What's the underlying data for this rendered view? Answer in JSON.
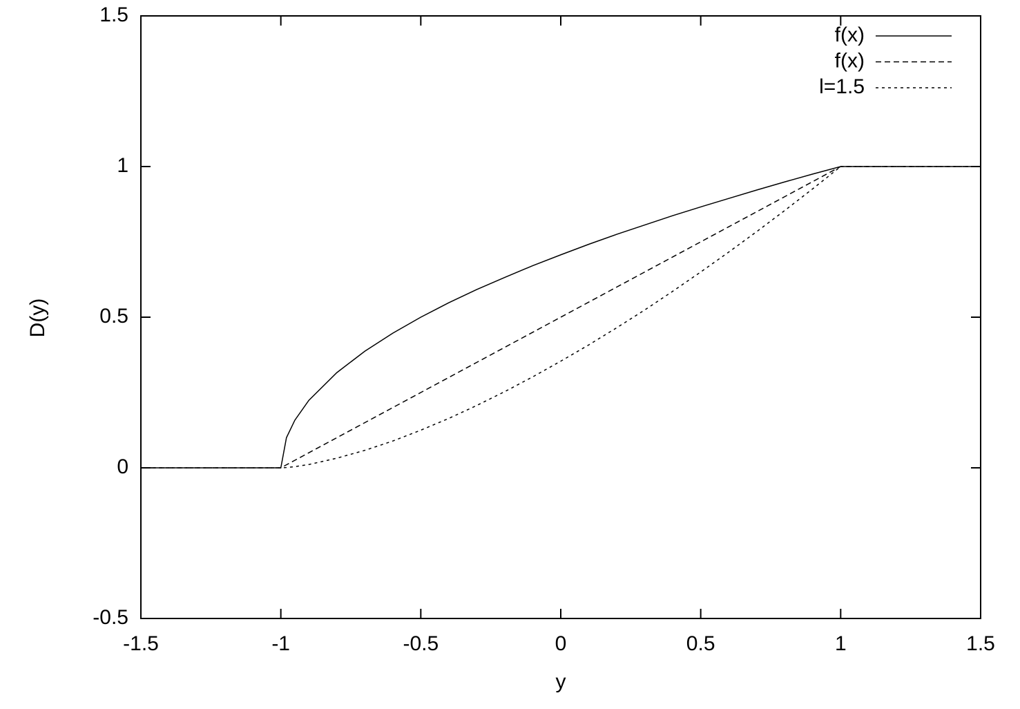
{
  "chart_data": {
    "type": "line",
    "x_label": "y",
    "y_label": "D(y)",
    "x": [
      -1.5,
      -1.4,
      -1.3,
      -1.2,
      -1.1,
      -1.0,
      -0.98,
      -0.95,
      -0.9,
      -0.8,
      -0.7,
      -0.6,
      -0.5,
      -0.4,
      -0.3,
      -0.2,
      -0.1,
      0,
      0.1,
      0.2,
      0.3,
      0.4,
      0.5,
      0.6,
      0.7,
      0.8,
      0.9,
      1.0,
      1.1,
      1.2,
      1.3,
      1.4,
      1.5
    ],
    "series": [
      {
        "name": "f(x)",
        "color": "#000000",
        "line_style": "solid",
        "values": [
          0,
          0,
          0,
          0,
          0,
          0,
          0.1,
          0.158,
          0.224,
          0.316,
          0.387,
          0.447,
          0.5,
          0.548,
          0.592,
          0.632,
          0.671,
          0.707,
          0.742,
          0.775,
          0.806,
          0.837,
          0.866,
          0.894,
          0.922,
          0.949,
          0.975,
          1,
          1,
          1,
          1,
          1,
          1
        ]
      },
      {
        "name": "f(x)",
        "color": "#000000",
        "line_style": "dashed",
        "values": [
          0,
          0,
          0,
          0,
          0,
          0,
          0.01,
          0.025,
          0.05,
          0.1,
          0.15,
          0.2,
          0.25,
          0.3,
          0.35,
          0.4,
          0.45,
          0.5,
          0.55,
          0.6,
          0.65,
          0.7,
          0.75,
          0.8,
          0.85,
          0.9,
          0.95,
          1,
          1,
          1,
          1,
          1,
          1
        ]
      },
      {
        "name": "l=1.5",
        "color": "#000000",
        "line_style": "dotted",
        "values": [
          0,
          0,
          0,
          0,
          0,
          0,
          0.001,
          0.004,
          0.011,
          0.032,
          0.058,
          0.089,
          0.125,
          0.164,
          0.207,
          0.253,
          0.302,
          0.354,
          0.408,
          0.465,
          0.524,
          0.586,
          0.65,
          0.716,
          0.784,
          0.854,
          0.926,
          1,
          1,
          1,
          1,
          1,
          1
        ]
      }
    ],
    "xlim": [
      -1.5,
      1.5
    ],
    "xticks": [
      -1.5,
      -1,
      -0.5,
      0,
      0.5,
      1,
      1.5
    ],
    "ylim": [
      -0.5,
      1.5
    ],
    "yticks": [
      -0.5,
      0,
      0.5,
      1,
      1.5
    ],
    "grid": false,
    "legend": "top-right"
  }
}
